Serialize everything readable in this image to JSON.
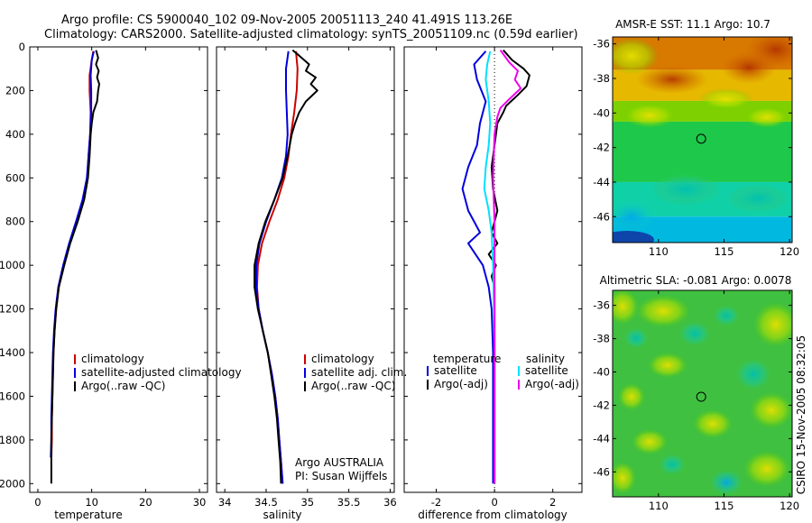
{
  "header": {
    "line1": "Argo profile: CS 5900040_102 09-Nov-2005 20051113_240 41.491S 113.26E",
    "line2": "Climatology: CARS2000. Satellite-adjusted climatology: synTS_20051109.nc (0.59d earlier)"
  },
  "colors": {
    "climatology": "#cc0000",
    "satellite": "#0000dd",
    "argo": "#000000",
    "satellite_salinity": "#00e0ff",
    "argo_adj_salinity": "#ee00ee"
  },
  "chart_data": [
    {
      "type": "line",
      "name": "temperature-panel",
      "xlabel": "temperature",
      "xlim": [
        -1.5,
        31.5
      ],
      "xticks": [
        0,
        10,
        20,
        30
      ],
      "ylim": [
        2040,
        0
      ],
      "yticks": [
        0,
        200,
        400,
        600,
        800,
        1000,
        1200,
        1400,
        1600,
        1800,
        2000
      ],
      "legend": [
        "climatology",
        "satellite-adjusted climatology",
        "Argo(..raw -QC)"
      ],
      "series": [
        {
          "name": "climatology",
          "color_key": "climatology",
          "points": [
            [
              10.3,
              20
            ],
            [
              10.0,
              60
            ],
            [
              9.6,
              130
            ],
            [
              9.6,
              200
            ],
            [
              9.8,
              300
            ],
            [
              9.7,
              400
            ],
            [
              9.4,
              500
            ],
            [
              9.2,
              600
            ],
            [
              8.4,
              700
            ],
            [
              7.2,
              800
            ],
            [
              5.9,
              900
            ],
            [
              4.8,
              1000
            ],
            [
              3.9,
              1100
            ],
            [
              3.4,
              1200
            ],
            [
              3.1,
              1300
            ],
            [
              2.9,
              1400
            ],
            [
              2.8,
              1500
            ],
            [
              2.7,
              1600
            ],
            [
              2.6,
              1700
            ],
            [
              2.6,
              1800
            ],
            [
              2.5,
              1880
            ]
          ]
        },
        {
          "name": "satellite-adjusted climatology",
          "color_key": "satellite",
          "points": [
            [
              10.4,
              20
            ],
            [
              10.0,
              60
            ],
            [
              9.8,
              130
            ],
            [
              9.9,
              200
            ],
            [
              9.9,
              300
            ],
            [
              9.7,
              400
            ],
            [
              9.4,
              500
            ],
            [
              9.1,
              600
            ],
            [
              8.3,
              700
            ],
            [
              7.1,
              800
            ],
            [
              5.8,
              900
            ],
            [
              4.7,
              1000
            ],
            [
              3.8,
              1100
            ],
            [
              3.3,
              1200
            ],
            [
              3.0,
              1300
            ],
            [
              2.8,
              1400
            ],
            [
              2.7,
              1500
            ],
            [
              2.6,
              1600
            ],
            [
              2.5,
              1700
            ],
            [
              2.5,
              1800
            ],
            [
              2.4,
              1880
            ]
          ]
        },
        {
          "name": "Argo(..raw -QC)",
          "color_key": "argo",
          "points": [
            [
              10.8,
              15
            ],
            [
              11.2,
              50
            ],
            [
              10.8,
              80
            ],
            [
              11.3,
              110
            ],
            [
              11.0,
              140
            ],
            [
              11.4,
              170
            ],
            [
              11.2,
              200
            ],
            [
              11.0,
              250
            ],
            [
              10.3,
              300
            ],
            [
              10.0,
              350
            ],
            [
              9.8,
              400
            ],
            [
              9.6,
              500
            ],
            [
              9.3,
              600
            ],
            [
              8.6,
              700
            ],
            [
              7.4,
              800
            ],
            [
              6.0,
              900
            ],
            [
              4.9,
              1000
            ],
            [
              3.9,
              1100
            ],
            [
              3.4,
              1200
            ],
            [
              3.1,
              1300
            ],
            [
              2.9,
              1400
            ],
            [
              2.8,
              1500
            ],
            [
              2.7,
              1600
            ],
            [
              2.6,
              1700
            ],
            [
              2.5,
              1800
            ],
            [
              2.5,
              1900
            ],
            [
              2.5,
              2000
            ]
          ]
        }
      ]
    },
    {
      "type": "line",
      "name": "salinity-panel",
      "xlabel": "salinity",
      "xlim": [
        33.9,
        36.05
      ],
      "xticks": [
        "34",
        "34.5",
        "35",
        "35.5",
        "36"
      ],
      "ylim": [
        2040,
        0
      ],
      "legend": [
        "climatology",
        "satellite adj. clim.",
        "Argo(..raw -QC)"
      ],
      "annotation": [
        "Argo AUSTRALIA",
        "PI: Susan Wijffels"
      ],
      "series": [
        {
          "name": "climatology",
          "color_key": "climatology",
          "points": [
            [
              34.86,
              20
            ],
            [
              34.88,
              100
            ],
            [
              34.87,
              200
            ],
            [
              34.84,
              300
            ],
            [
              34.8,
              400
            ],
            [
              34.77,
              500
            ],
            [
              34.72,
              600
            ],
            [
              34.64,
              700
            ],
            [
              34.54,
              800
            ],
            [
              34.45,
              900
            ],
            [
              34.4,
              1000
            ],
            [
              34.39,
              1100
            ],
            [
              34.41,
              1200
            ],
            [
              34.46,
              1300
            ],
            [
              34.52,
              1400
            ],
            [
              34.57,
              1500
            ],
            [
              34.61,
              1600
            ],
            [
              34.64,
              1700
            ],
            [
              34.66,
              1800
            ],
            [
              34.68,
              1900
            ],
            [
              34.7,
              2000
            ]
          ]
        },
        {
          "name": "satellite adj. clim.",
          "color_key": "satellite",
          "points": [
            [
              34.77,
              20
            ],
            [
              34.74,
              100
            ],
            [
              34.74,
              200
            ],
            [
              34.75,
              300
            ],
            [
              34.76,
              400
            ],
            [
              34.74,
              500
            ],
            [
              34.69,
              600
            ],
            [
              34.6,
              700
            ],
            [
              34.5,
              800
            ],
            [
              34.42,
              900
            ],
            [
              34.38,
              1000
            ],
            [
              34.38,
              1100
            ],
            [
              34.41,
              1200
            ],
            [
              34.46,
              1300
            ],
            [
              34.52,
              1400
            ],
            [
              34.57,
              1500
            ],
            [
              34.61,
              1600
            ],
            [
              34.64,
              1700
            ],
            [
              34.66,
              1800
            ],
            [
              34.68,
              1900
            ],
            [
              34.7,
              2000
            ]
          ]
        },
        {
          "name": "Argo(..raw -QC)",
          "color_key": "argo",
          "points": [
            [
              34.82,
              15
            ],
            [
              34.9,
              40
            ],
            [
              35.02,
              80
            ],
            [
              34.98,
              110
            ],
            [
              35.1,
              140
            ],
            [
              35.04,
              170
            ],
            [
              35.12,
              200
            ],
            [
              34.98,
              250
            ],
            [
              34.9,
              300
            ],
            [
              34.85,
              350
            ],
            [
              34.81,
              400
            ],
            [
              34.76,
              500
            ],
            [
              34.7,
              600
            ],
            [
              34.6,
              700
            ],
            [
              34.49,
              800
            ],
            [
              34.41,
              900
            ],
            [
              34.36,
              1000
            ],
            [
              34.36,
              1100
            ],
            [
              34.4,
              1200
            ],
            [
              34.46,
              1300
            ],
            [
              34.52,
              1400
            ],
            [
              34.56,
              1500
            ],
            [
              34.6,
              1600
            ],
            [
              34.63,
              1700
            ],
            [
              34.65,
              1800
            ],
            [
              34.67,
              1900
            ],
            [
              34.68,
              2000
            ]
          ]
        }
      ]
    },
    {
      "type": "line",
      "name": "difference-panel",
      "xlabel": "difference from climatology",
      "xlim": [
        -3.1,
        3.0
      ],
      "xticks": [
        -2,
        0,
        2
      ],
      "ylim": [
        2040,
        0
      ],
      "zero_line": true,
      "legend": {
        "temperature": {
          "heading": "temperature",
          "entries": [
            "satellite",
            "Argo(-adj)"
          ]
        },
        "salinity": {
          "heading": "salinity",
          "entries": [
            "satellite",
            "Argo(-adj)"
          ]
        }
      },
      "series": [
        {
          "name": "temperature satellite",
          "color_key": "satellite",
          "points": [
            [
              -0.3,
              20
            ],
            [
              -0.7,
              80
            ],
            [
              -0.6,
              150
            ],
            [
              -0.3,
              250
            ],
            [
              -0.5,
              350
            ],
            [
              -0.6,
              450
            ],
            [
              -0.9,
              550
            ],
            [
              -1.1,
              650
            ],
            [
              -0.9,
              750
            ],
            [
              -0.5,
              850
            ],
            [
              -0.9,
              900
            ],
            [
              -0.4,
              1000
            ],
            [
              -0.2,
              1100
            ],
            [
              -0.1,
              1200
            ],
            [
              -0.05,
              1400
            ],
            [
              -0.05,
              1600
            ],
            [
              -0.05,
              1800
            ],
            [
              -0.05,
              2000
            ]
          ]
        },
        {
          "name": "temperature Argo(-adj)",
          "color_key": "argo",
          "points": [
            [
              0.3,
              15
            ],
            [
              0.6,
              60
            ],
            [
              1.0,
              100
            ],
            [
              1.2,
              130
            ],
            [
              1.1,
              180
            ],
            [
              0.8,
              220
            ],
            [
              0.4,
              270
            ],
            [
              0.3,
              300
            ],
            [
              0.1,
              350
            ],
            [
              0.0,
              450
            ],
            [
              -0.1,
              550
            ],
            [
              -0.05,
              650
            ],
            [
              0.1,
              750
            ],
            [
              -0.1,
              850
            ],
            [
              0.1,
              900
            ],
            [
              -0.2,
              950
            ],
            [
              0.05,
              1000
            ],
            [
              -0.1,
              1050
            ],
            [
              0.0,
              1100
            ],
            [
              0.0,
              1300
            ],
            [
              0.0,
              1600
            ],
            [
              0.0,
              2000
            ]
          ]
        },
        {
          "name": "salinity satellite",
          "color_key": "satellite_salinity",
          "points": [
            [
              -0.15,
              20
            ],
            [
              -0.25,
              80
            ],
            [
              -0.3,
              150
            ],
            [
              -0.2,
              250
            ],
            [
              -0.15,
              350
            ],
            [
              -0.2,
              450
            ],
            [
              -0.3,
              550
            ],
            [
              -0.35,
              650
            ],
            [
              -0.2,
              750
            ],
            [
              -0.1,
              850
            ],
            [
              -0.05,
              1000
            ],
            [
              -0.02,
              1200
            ],
            [
              0.0,
              1400
            ],
            [
              0.0,
              2000
            ]
          ]
        },
        {
          "name": "salinity Argo(-adj)",
          "color_key": "argo_adj_salinity",
          "points": [
            [
              0.2,
              15
            ],
            [
              0.5,
              70
            ],
            [
              0.8,
              110
            ],
            [
              0.7,
              150
            ],
            [
              0.9,
              190
            ],
            [
              0.5,
              240
            ],
            [
              0.2,
              280
            ],
            [
              0.1,
              320
            ],
            [
              0.0,
              400
            ],
            [
              -0.05,
              600
            ],
            [
              0.0,
              800
            ],
            [
              0.0,
              1000
            ],
            [
              0.0,
              1200
            ],
            [
              0.0,
              1600
            ],
            [
              0.0,
              2000
            ]
          ]
        }
      ]
    },
    {
      "type": "heatmap",
      "name": "sst-map",
      "title": "AMSR-E SST: 11.1  Argo: 10.7",
      "xlim": [
        106.5,
        120.2
      ],
      "ylim": [
        -47.5,
        -35.6
      ],
      "xticks": [
        110,
        115,
        120
      ],
      "yticks": [
        -36,
        -38,
        -40,
        -42,
        -44,
        -46
      ],
      "marker": [
        113.26,
        -41.491
      ],
      "zones": [
        {
          "lat_max": -35.6,
          "lat_min": -37.5,
          "color": "#d87a00"
        },
        {
          "lat_max": -37.5,
          "lat_min": -39.3,
          "color": "#e6b800"
        },
        {
          "lat_max": -39.3,
          "lat_min": -40.5,
          "color": "#7fd000"
        },
        {
          "lat_max": -40.5,
          "lat_min": -44.0,
          "color": "#1ec84a"
        },
        {
          "lat_max": -44.0,
          "lat_min": -46.0,
          "color": "#10d0a8"
        },
        {
          "lat_max": -46.0,
          "lat_min": -47.5,
          "color": "#00b8e0"
        }
      ]
    },
    {
      "type": "heatmap",
      "name": "sla-map",
      "title": "Altimetric SLA: -0.081  Argo: 0.0078",
      "xlim": [
        106.5,
        120.2
      ],
      "ylim": [
        -47.5,
        -35.1
      ],
      "xticks": [
        110,
        115,
        120
      ],
      "yticks": [
        -36,
        -38,
        -40,
        -42,
        -44,
        -46
      ],
      "marker": [
        113.26,
        -41.491
      ]
    }
  ],
  "side_label": "CSIRO  15-Nov-2005 08:32:05"
}
